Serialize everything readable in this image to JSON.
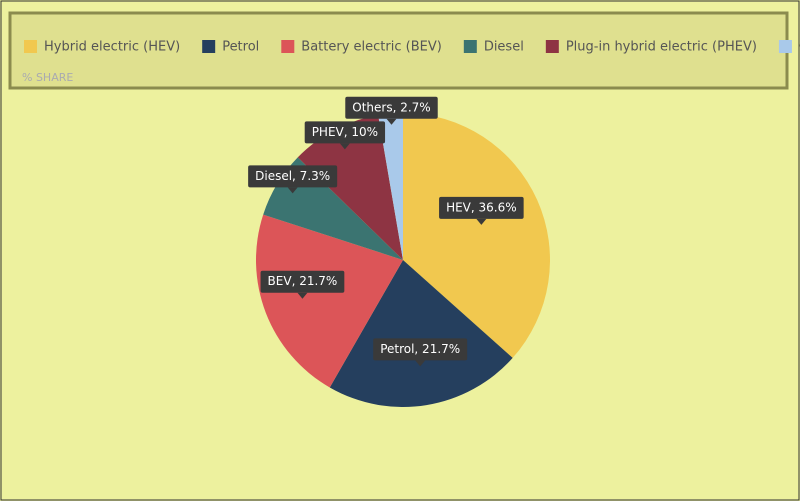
{
  "chart_data": {
    "type": "pie",
    "subtitle": "% SHARE",
    "categories": [
      "Hybrid electric (HEV)",
      "Petrol",
      "Battery electric (BEV)",
      "Diesel",
      "Plug-in hybrid electric (PHEV)",
      "Others"
    ],
    "values": [
      36.6,
      21.7,
      21.7,
      7.3,
      10,
      2.7
    ],
    "value_labels": [
      "HEV, 36.6%",
      "Petrol, 21.7%",
      "BEV, 21.7%",
      "Diesel, 7.3%",
      "PHEV, 10%",
      "Others, 2.7%"
    ],
    "colors": [
      "#f1c84f",
      "#253f5e",
      "#dc5558",
      "#3b7471",
      "#8e3443",
      "#a9c9ea"
    ],
    "legend": "top"
  }
}
